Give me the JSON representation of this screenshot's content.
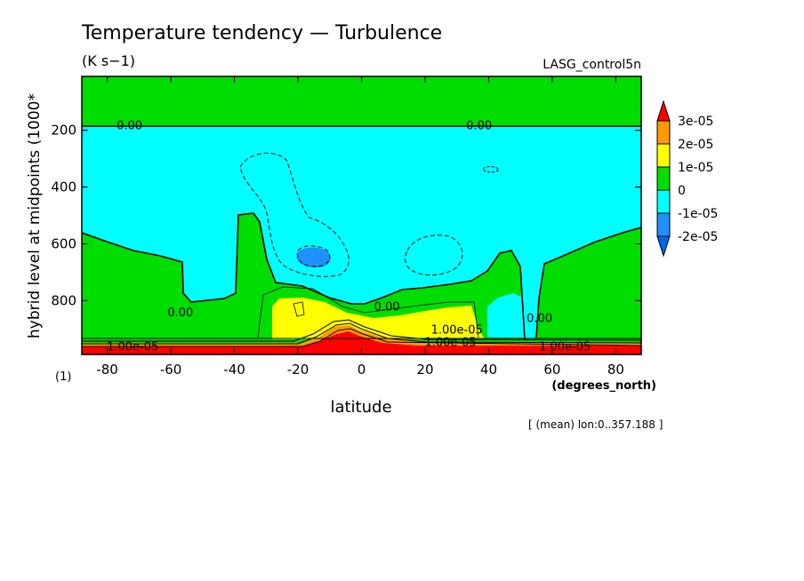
{
  "chart_data": {
    "type": "heatmap",
    "title": "Temperature tendency — Turbulence",
    "units": "(K s−1)",
    "dataset": "LASG_control5n",
    "xlabel": "latitude",
    "x_units": "(degrees_north)",
    "ylabel": "hybrid level at midpoints (1000*",
    "y_corner_label": "(1)",
    "footnote": "[ (mean) lon:0..357.188 ]",
    "xlim": [
      -88,
      88
    ],
    "ylim": [
      990,
      10
    ],
    "x_ticks": [
      "-80",
      "-60",
      "-40",
      "-20",
      "0",
      "20",
      "40",
      "60",
      "80"
    ],
    "y_ticks": [
      "200",
      "400",
      "600",
      "800"
    ],
    "colorbar": {
      "labels": [
        "3e-05",
        "2e-05",
        "1e-05",
        "0",
        "-1e-05",
        "-2e-05"
      ],
      "colors": [
        "#ff0000",
        "#ff9900",
        "#ffff00",
        "#00dd00",
        "#00ffff",
        "#1e90ff",
        "#0066ee"
      ]
    },
    "contour_labels": [
      {
        "text": "0.00",
        "lat": -73,
        "lev": 180
      },
      {
        "text": "0.00",
        "lat": 37,
        "lev": 180
      },
      {
        "text": "0.00",
        "lat": -57,
        "lev": 840
      },
      {
        "text": "0.00",
        "lat": 8,
        "lev": 820
      },
      {
        "text": "0.00",
        "lat": 56,
        "lev": 860
      },
      {
        "text": "1.00e-05",
        "lat": 30,
        "lev": 900
      },
      {
        "text": "1.00e-05",
        "lat": 28,
        "lev": 945
      },
      {
        "text": "1.00e-05",
        "lat": 64,
        "lev": 960
      },
      {
        "text": "1.00e-05",
        "lat": -72,
        "lev": 960
      }
    ]
  }
}
